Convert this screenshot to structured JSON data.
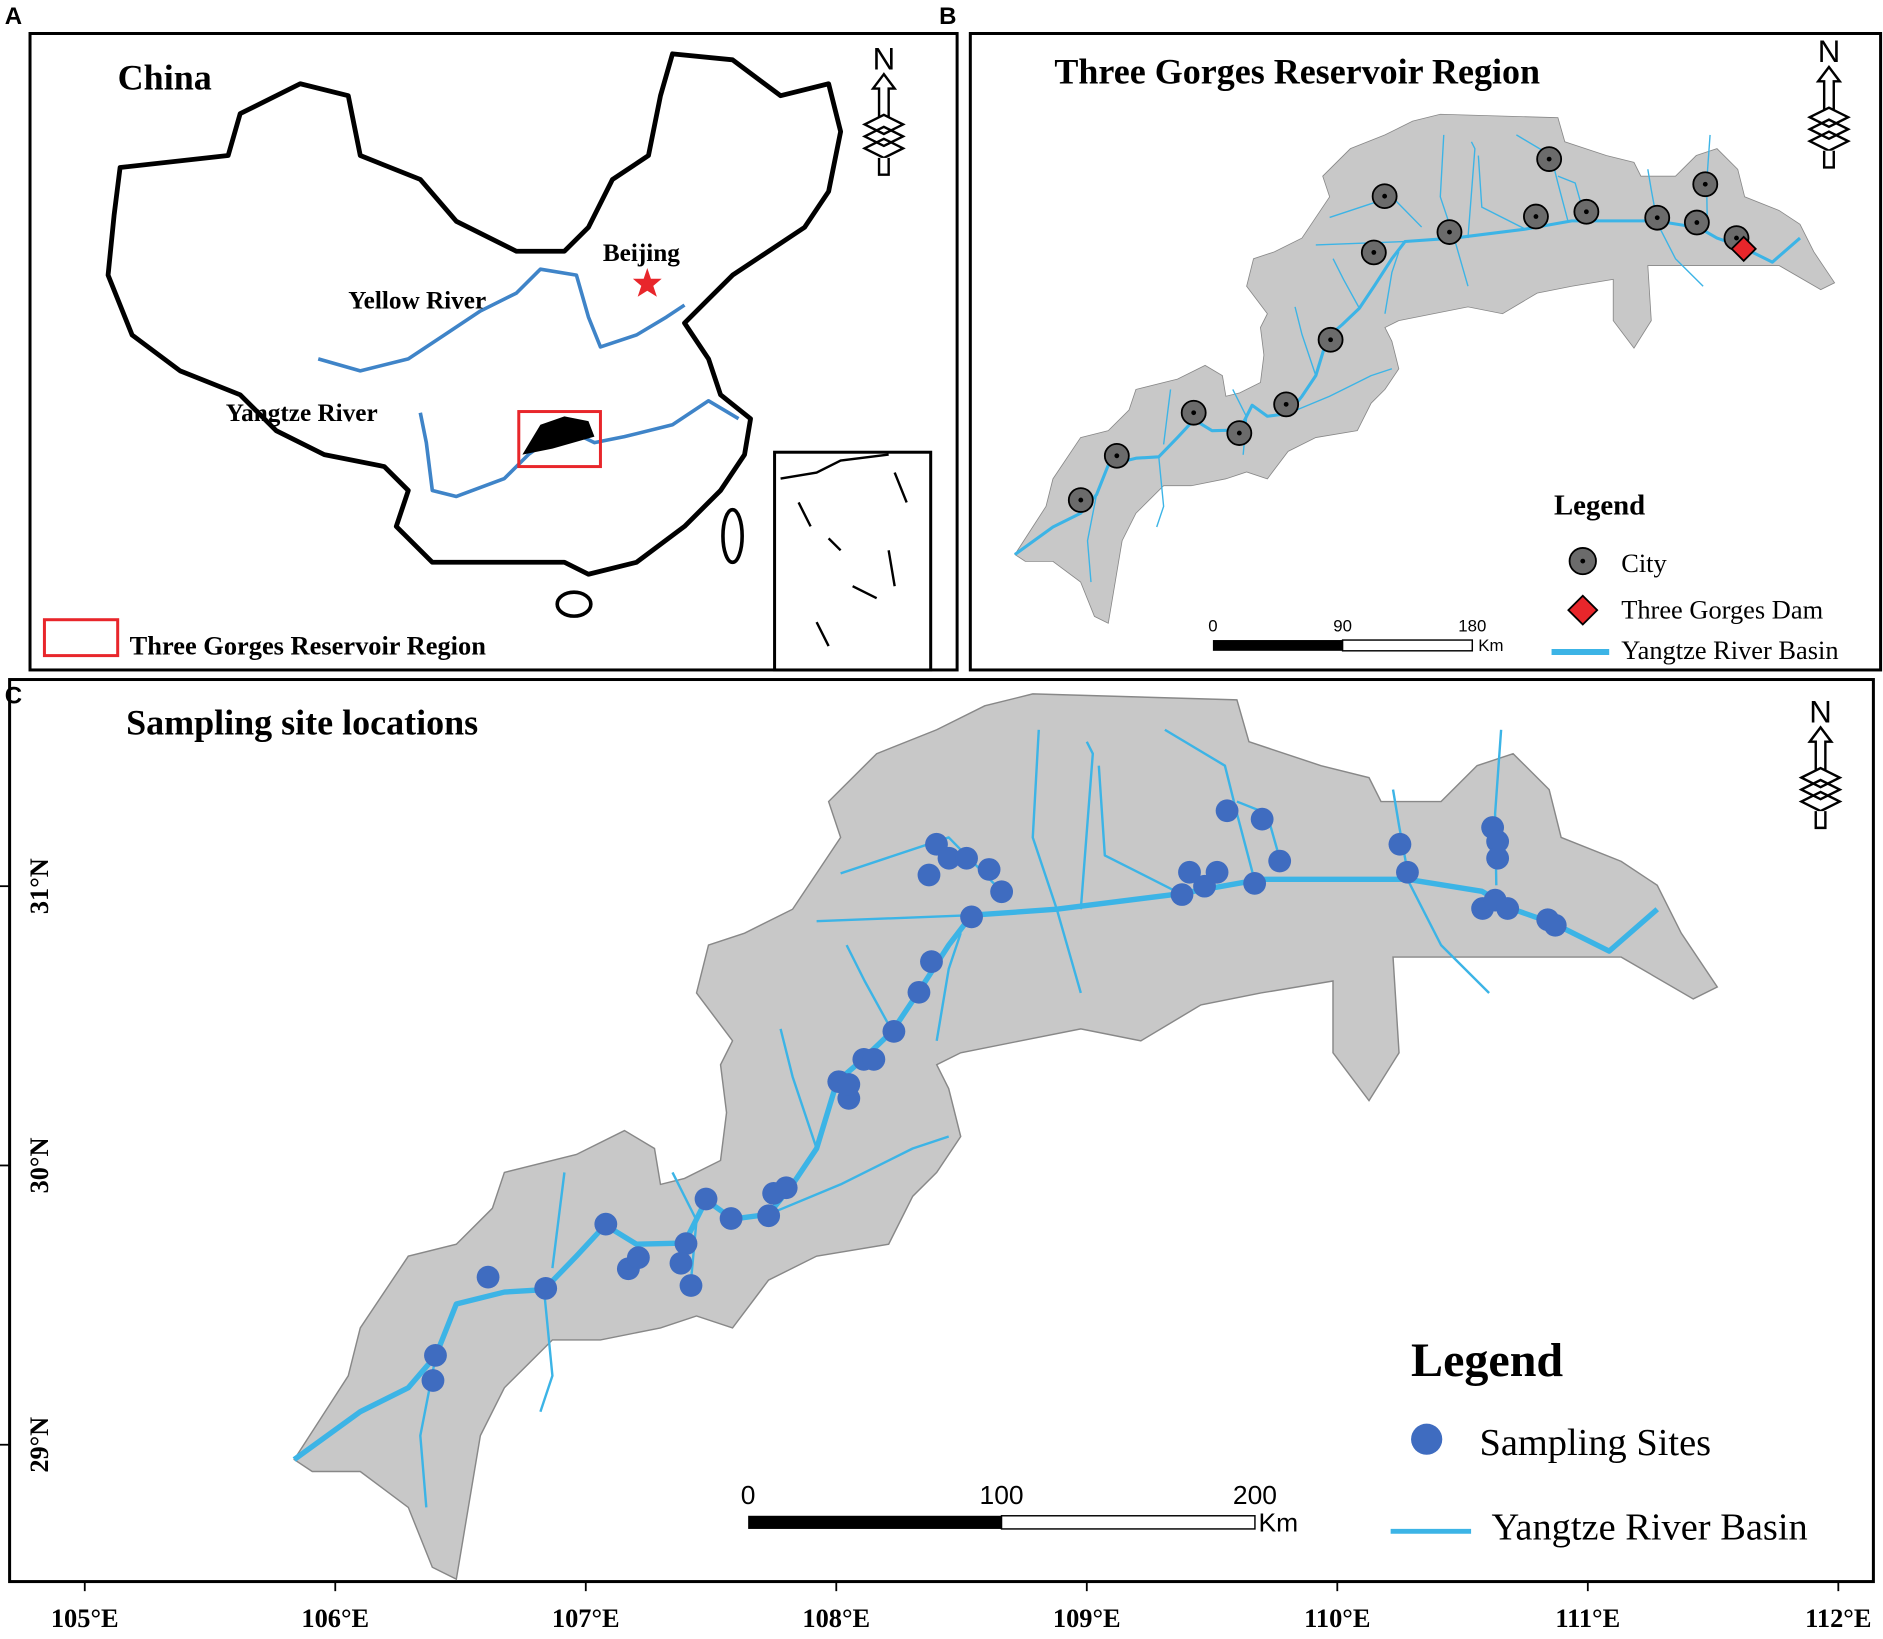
{
  "panel_a": {
    "label": "A",
    "title": "China",
    "north": "N",
    "beijing": "Beijing",
    "yellow_river": "Yellow River",
    "yangtze_river": "Yangtze River",
    "legend": "Three Gorges Reservoir Region"
  },
  "panel_b": {
    "label": "B",
    "title": "Three Gorges Reservoir Region",
    "north": "N",
    "legend_title": "Legend",
    "legend": [
      "City",
      "Three Gorges Dam",
      "Yangtze River Basin"
    ],
    "scale": {
      "ticks": [
        0,
        90,
        180
      ],
      "unit": "Km"
    }
  },
  "panel_c": {
    "label": "C",
    "title": "Sampling site locations",
    "north": "N",
    "legend_title": "Legend",
    "legend": [
      "Sampling Sites",
      "Yangtze River Basin"
    ],
    "scale": {
      "ticks": [
        0,
        100,
        200
      ],
      "unit": "Km"
    },
    "xlim": [
      104.7,
      112.14
    ],
    "ylim": [
      28.51,
      31.74
    ],
    "xticks": [
      {
        "value": 105,
        "label": "105°E"
      },
      {
        "value": 106,
        "label": "106°E"
      },
      {
        "value": 107,
        "label": "107°E"
      },
      {
        "value": 108,
        "label": "108°E"
      },
      {
        "value": 109,
        "label": "109°E"
      },
      {
        "value": 110,
        "label": "110°E"
      },
      {
        "value": 111,
        "label": "111°E"
      },
      {
        "value": 112,
        "label": "112°E"
      }
    ],
    "yticks": [
      {
        "value": 29,
        "label": "29°N"
      },
      {
        "value": 30,
        "label": "30°N"
      },
      {
        "value": 31,
        "label": "31°N"
      }
    ],
    "site_color": "#3f6cc0",
    "sites": {
      "lon": [
        106.4,
        106.39,
        106.61,
        106.84,
        107.08,
        107.17,
        107.21,
        107.4,
        107.38,
        107.42,
        107.48,
        107.58,
        107.73,
        107.75,
        107.8,
        108.01,
        108.05,
        108.05,
        108.11,
        108.15,
        108.23,
        108.33,
        108.38,
        108.54,
        108.4,
        108.37,
        108.45,
        108.52,
        108.61,
        108.66,
        109.38,
        109.41,
        109.47,
        109.52,
        109.56,
        109.7,
        109.67,
        109.77,
        110.25,
        110.28,
        110.62,
        110.64,
        110.64,
        110.58,
        110.63,
        110.68,
        110.84,
        110.87
      ],
      "lat": [
        29.32,
        29.23,
        29.6,
        29.56,
        29.79,
        29.63,
        29.67,
        29.72,
        29.65,
        29.57,
        29.88,
        29.81,
        29.82,
        29.9,
        29.92,
        30.3,
        30.24,
        30.29,
        30.38,
        30.38,
        30.48,
        30.62,
        30.73,
        30.89,
        31.15,
        31.04,
        31.1,
        31.1,
        31.06,
        30.98,
        30.97,
        31.05,
        31.0,
        31.05,
        31.27,
        31.24,
        31.01,
        31.09,
        31.15,
        31.05,
        31.21,
        31.16,
        31.1,
        30.92,
        30.95,
        30.92,
        30.88,
        30.86
      ]
    }
  }
}
